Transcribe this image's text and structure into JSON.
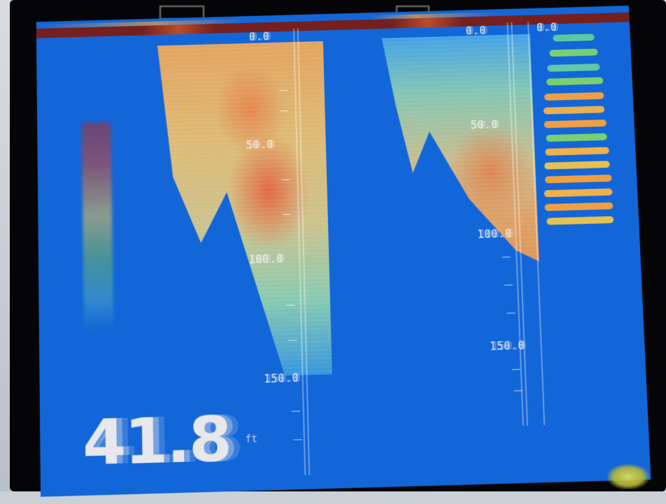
{
  "header": {
    "box_left": "",
    "box_mid": "",
    "arrow": "",
    "box_right": ""
  },
  "overlay": {
    "coord_line_1": "",
    "coord_line_2": ""
  },
  "scale_left": {
    "top": "0.0",
    "mid1": "50.0",
    "mid2": "100.0",
    "bottom": "150.0"
  },
  "scale_right": {
    "top": "0.0",
    "mid1": "50.0",
    "mid2": "100.0",
    "bottom": "150.0"
  },
  "bars_label": "0.0",
  "depth": {
    "value": "41.8",
    "unit": "ft"
  },
  "colors": {
    "screen_bg": "#1266d8",
    "echo_hot": "#f06a3a",
    "echo_mid": "#d8c98a",
    "echo_cool": "#8fd0b0"
  }
}
